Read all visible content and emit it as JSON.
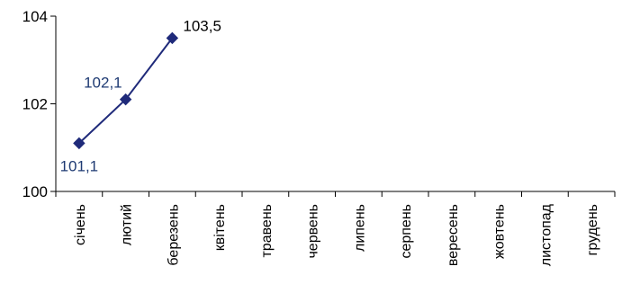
{
  "chart_data": {
    "type": "line",
    "title": "",
    "xlabel": "",
    "ylabel": "",
    "categories": [
      "січень",
      "лютий",
      "березень",
      "квітень",
      "травень",
      "червень",
      "липень",
      "серпень",
      "вересень",
      "жовтень",
      "листопад",
      "грудень"
    ],
    "series": [
      {
        "values": [
          101.1,
          102.1,
          103.5,
          null,
          null,
          null,
          null,
          null,
          null,
          null,
          null,
          null
        ],
        "data_labels": [
          "101,1",
          "102,1",
          "103,5",
          null,
          null,
          null,
          null,
          null,
          null,
          null,
          null,
          null
        ],
        "color": "#1f2a7a",
        "marker": "diamond"
      }
    ],
    "ylim": [
      100,
      104
    ],
    "yticks": [
      100,
      102,
      104
    ],
    "ytick_labels": [
      "100",
      "102",
      "104"
    ],
    "grid": false,
    "legend": "none",
    "colors": {
      "line": "#1f2a7a",
      "data_label_dark": "#000000",
      "data_label_blue": "#1f3b73",
      "axis": "#000000"
    }
  }
}
